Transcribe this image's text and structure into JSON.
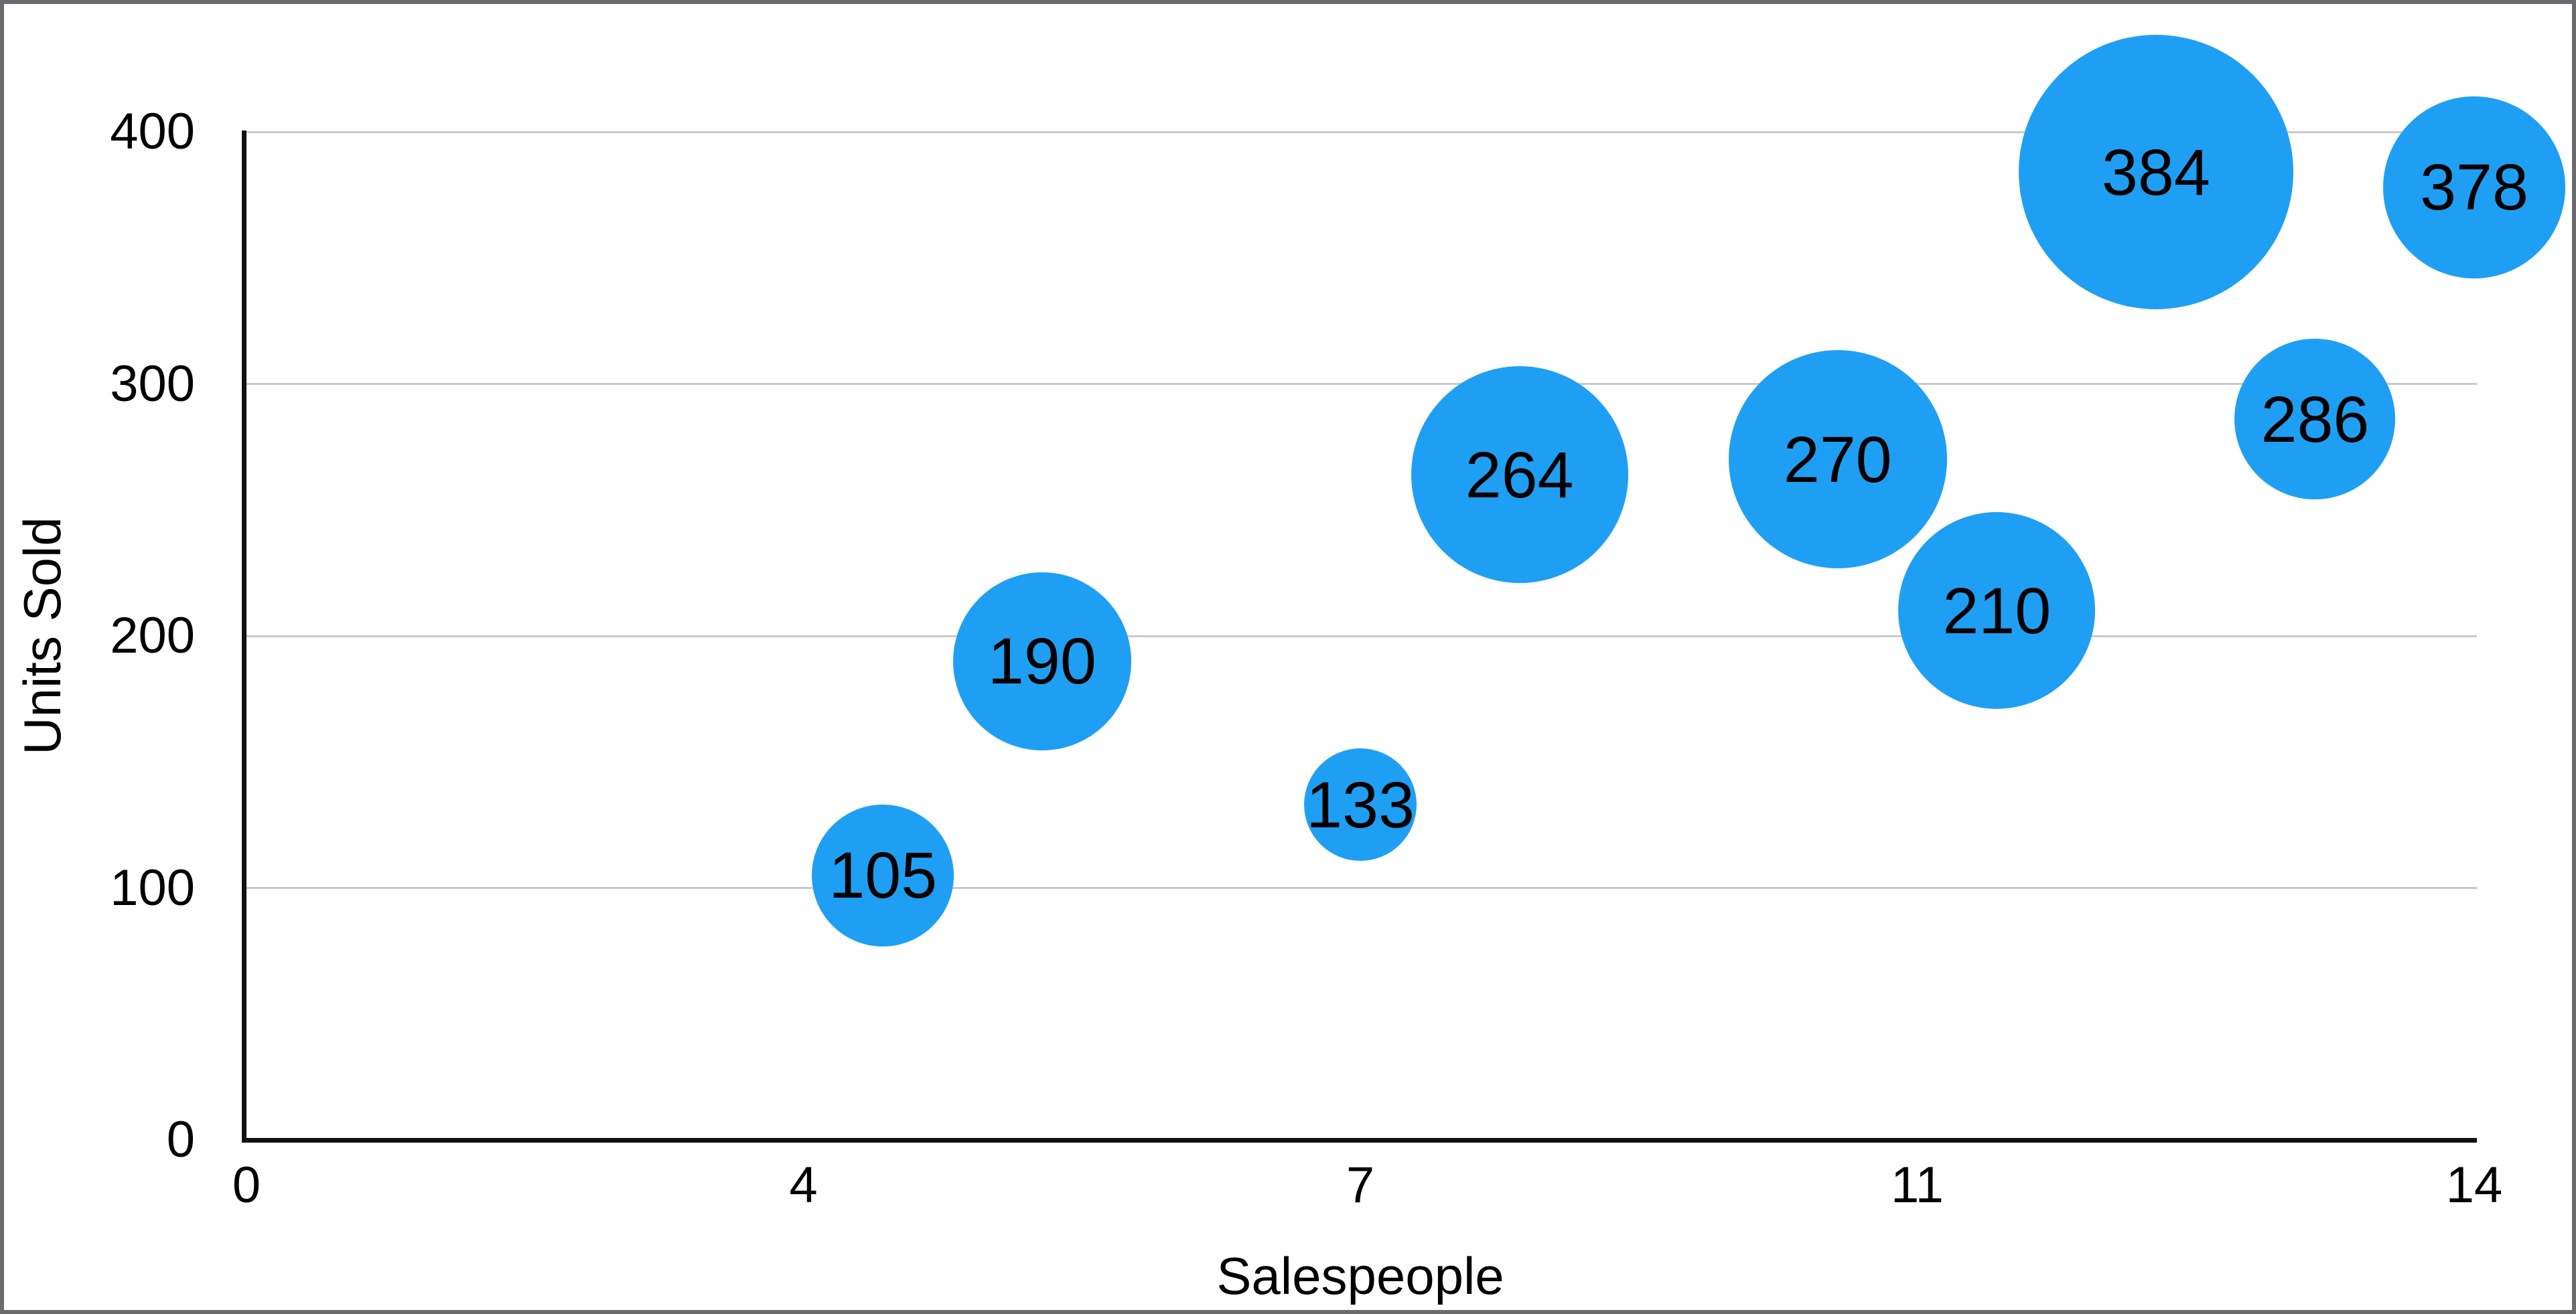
{
  "chart_data": {
    "type": "bubble",
    "title": "",
    "xlabel": "Salespeople",
    "ylabel": "Units Sold",
    "xlim": [
      0,
      14
    ],
    "ylim": [
      0,
      400
    ],
    "x_tick_labels": [
      "0",
      "4",
      "7",
      "11",
      "14"
    ],
    "y_tick_labels": [
      "0",
      "100",
      "200",
      "300",
      "400"
    ],
    "grid": "horizontal",
    "legend": "none",
    "points": [
      {
        "x": 4,
        "y": 105,
        "label": "105",
        "radius_px": 106
      },
      {
        "x": 5,
        "y": 190,
        "label": "190",
        "radius_px": 133
      },
      {
        "x": 7,
        "y": 133,
        "label": "133",
        "radius_px": 84
      },
      {
        "x": 8,
        "y": 264,
        "label": "264",
        "radius_px": 162
      },
      {
        "x": 10,
        "y": 270,
        "label": "270",
        "radius_px": 163
      },
      {
        "x": 11,
        "y": 210,
        "label": "210",
        "radius_px": 147
      },
      {
        "x": 12,
        "y": 384,
        "label": "384",
        "radius_px": 205
      },
      {
        "x": 13,
        "y": 286,
        "label": "286",
        "radius_px": 120
      },
      {
        "x": 14,
        "y": 378,
        "label": "378",
        "radius_px": 136
      }
    ]
  },
  "colors": {
    "bubble_fill": "#1f9ff3",
    "bubble_label": "#000000",
    "gridline": "#c9c9c9",
    "axis_line": "#111111",
    "tick_label": "#000000",
    "axis_title": "#000000",
    "frame_border": "#6b6b6f",
    "background": "#ffffff"
  }
}
